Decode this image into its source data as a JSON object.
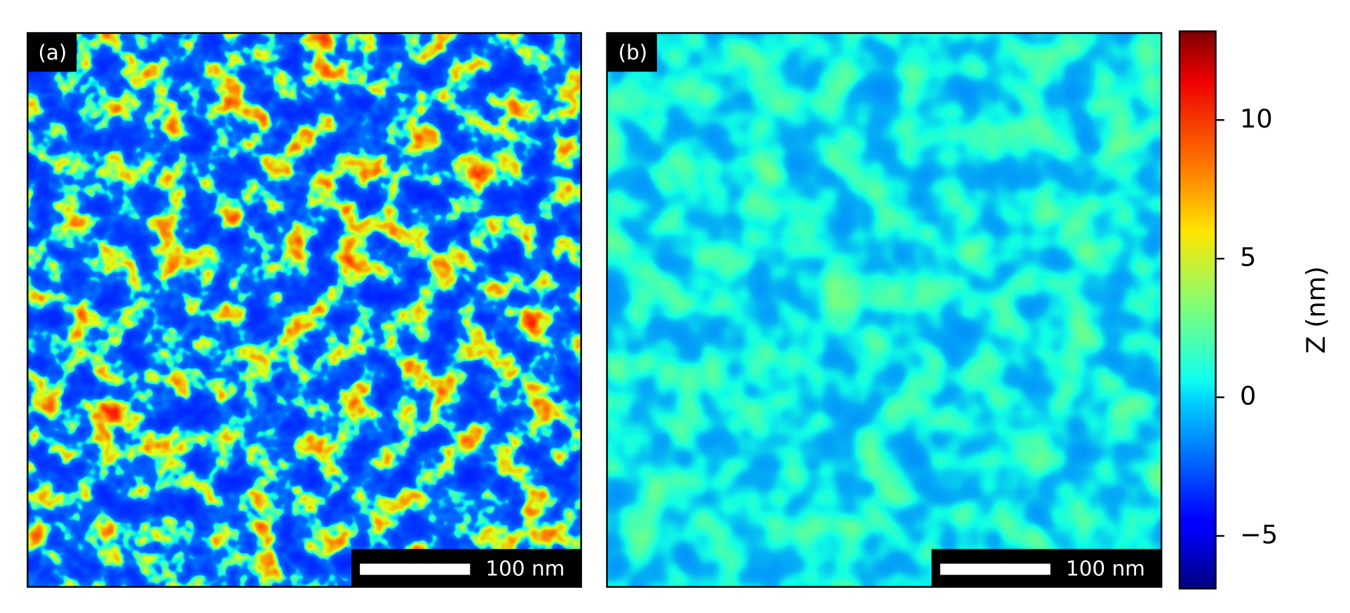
{
  "panels": [
    {
      "label": "(a)",
      "scale_bar": "100 nm"
    },
    {
      "label": "(b)",
      "scale_bar": "100 nm"
    }
  ],
  "colorbar": {
    "label": "Z (nm)",
    "lim": [
      -6.9,
      13.2
    ],
    "ticks": [
      {
        "value": -5,
        "label": "−5"
      },
      0,
      5,
      10
    ]
  }
}
